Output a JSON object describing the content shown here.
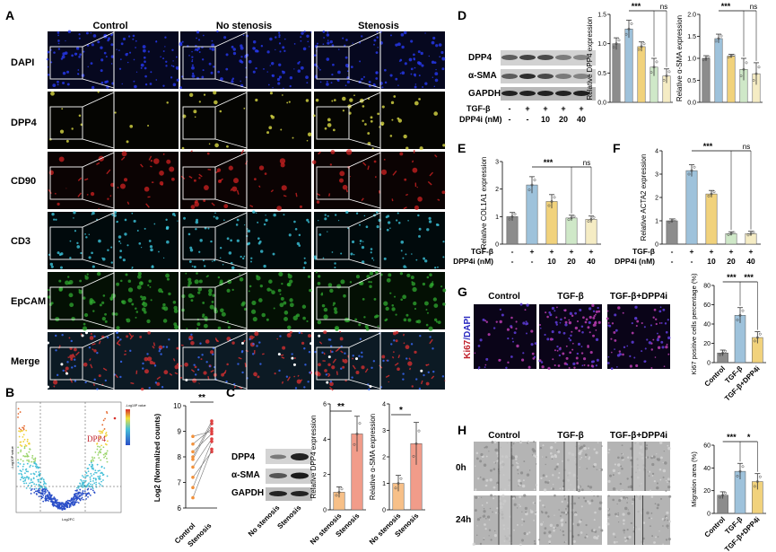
{
  "panel_letters": [
    "A",
    "B",
    "C",
    "D",
    "E",
    "F",
    "G",
    "H"
  ],
  "colors": {
    "bar_gray": "#8c8c8c",
    "bar_blue": "#9ec2db",
    "bar_yellow": "#f1d27c",
    "bar_green": "#cfe8c8",
    "bar_cream": "#f5ecc4",
    "bar_orange": "#f7c088",
    "bar_salmon": "#f19c8a"
  },
  "panel_A": {
    "columns": [
      "Control",
      "No stenosis",
      "Stenosis"
    ],
    "rows": [
      "DAPI",
      "DPP4",
      "CD90",
      "CD3",
      "EpCAM",
      "Merge"
    ]
  },
  "panel_B": {
    "volcano": {
      "legend_title": "-Log10P value",
      "x_axis": "Log2FC",
      "y_axis": "-Log10P value",
      "highlight": "DPP4"
    },
    "paired": {
      "y_label": "Log2 (Normalized counts)",
      "groups": [
        "Control",
        "Stenosis"
      ],
      "significance": "**",
      "y_ticks": [
        "6",
        "7",
        "8",
        "9",
        "10"
      ]
    }
  },
  "panel_C": {
    "blot_labels": [
      "DPP4",
      "α-SMA",
      "GAPDH"
    ],
    "lanes": [
      "No stenosis",
      "Stenosis"
    ],
    "sig_dpp4": "**",
    "sig_sma": "*"
  },
  "panel_D": {
    "blot_labels": [
      "DPP4",
      "α-SMA",
      "GAPDH"
    ],
    "treat_labels": [
      "TGF-β",
      "DPP4i (nM)"
    ],
    "tgf_marks": [
      "-",
      "+",
      "+",
      "+",
      "+"
    ],
    "dpp4i_marks": [
      "-",
      "-",
      "10",
      "20",
      "40"
    ],
    "sig_main": "***",
    "sig_ns": "ns"
  },
  "panel_E": {
    "treat_labels": [
      "TGF-β",
      "DPP4i (nM)"
    ],
    "tgf_marks": [
      "-",
      "+",
      "+",
      "+",
      "+"
    ],
    "dpp4i_marks": [
      "-",
      "-",
      "10",
      "20",
      "40"
    ],
    "sig_main": "***",
    "sig_ns": "ns"
  },
  "panel_F": {
    "treat_labels": [
      "TGF-β",
      "DPP4i (nM)"
    ],
    "tgf_marks": [
      "-",
      "+",
      "+",
      "+",
      "+"
    ],
    "dpp4i_marks": [
      "-",
      "-",
      "10",
      "20",
      "40"
    ],
    "sig_main": "***",
    "sig_ns": "ns"
  },
  "panel_G": {
    "columns": [
      "Control",
      "TGF-β",
      "TGF-β+DPP4i"
    ],
    "stain_ki67": "Ki67",
    "stain_dapi": "/DAPI",
    "sig1": "***",
    "sig2": "***"
  },
  "panel_H": {
    "columns": [
      "Control",
      "TGF-β",
      "TGF-β+DPP4i"
    ],
    "rows": [
      "0h",
      "24h"
    ],
    "sig1": "***",
    "sig2": "*"
  },
  "chart_data": [
    {
      "id": "C-left",
      "type": "bar",
      "categories": [
        "No stenosis",
        "Stenosis"
      ],
      "values": [
        1.0,
        4.3
      ],
      "errors": [
        0.3,
        1.0
      ],
      "ylabel": "Relative DPP4 expression",
      "ylim": [
        0,
        6
      ],
      "y_ticks": [
        0,
        2,
        4,
        6
      ]
    },
    {
      "id": "C-right",
      "type": "bar",
      "categories": [
        "No stenosis",
        "Stenosis"
      ],
      "values": [
        1.0,
        2.5
      ],
      "errors": [
        0.3,
        0.8
      ],
      "ylabel": "Relative α-SMA expression",
      "ylim": [
        0,
        4
      ],
      "y_ticks": [
        0,
        1,
        2,
        3,
        4
      ]
    },
    {
      "id": "D-left",
      "type": "bar",
      "categories": [
        "-/-",
        "+/-",
        "+/10",
        "+/20",
        "+/40"
      ],
      "values": [
        1.0,
        1.25,
        0.95,
        0.6,
        0.45
      ],
      "errors": [
        0.1,
        0.15,
        0.08,
        0.15,
        0.12
      ],
      "ylabel": "Relative DPP4 expression",
      "ylim": [
        0,
        1.5
      ],
      "y_ticks": [
        0,
        0.5,
        1.0,
        1.5
      ]
    },
    {
      "id": "D-right",
      "type": "bar",
      "categories": [
        "-/-",
        "+/-",
        "+/10",
        "+/20",
        "+/40"
      ],
      "values": [
        1.0,
        1.45,
        1.05,
        0.75,
        0.65
      ],
      "errors": [
        0.06,
        0.1,
        0.04,
        0.25,
        0.25
      ],
      "ylabel": "Relative α-SMA expression",
      "ylim": [
        0,
        2.0
      ],
      "y_ticks": [
        0,
        0.5,
        1.0,
        1.5,
        2.0
      ]
    },
    {
      "id": "E",
      "type": "bar",
      "categories": [
        "-/-",
        "+/-",
        "+/10",
        "+/20",
        "+/40"
      ],
      "values": [
        1.0,
        2.15,
        1.55,
        0.95,
        0.9
      ],
      "errors": [
        0.15,
        0.3,
        0.25,
        0.1,
        0.12
      ],
      "ylabel": "Relative COL1A1 expression",
      "ylim": [
        0,
        3
      ],
      "y_ticks": [
        0,
        1,
        2,
        3
      ]
    },
    {
      "id": "F",
      "type": "bar",
      "categories": [
        "-/-",
        "+/-",
        "+/10",
        "+/20",
        "+/40"
      ],
      "values": [
        1.0,
        3.15,
        2.15,
        0.45,
        0.45
      ],
      "errors": [
        0.08,
        0.25,
        0.15,
        0.08,
        0.1
      ],
      "ylabel": "Relative ACTA2 expression",
      "ylim": [
        0,
        4
      ],
      "y_ticks": [
        0,
        1,
        2,
        3,
        4
      ]
    },
    {
      "id": "G",
      "type": "bar",
      "categories": [
        "Control",
        "TGF-β",
        "TGF-β+DPP4i"
      ],
      "values": [
        10,
        49,
        26
      ],
      "errors": [
        3,
        8,
        6
      ],
      "ylabel": "Ki67 positive cells percentage (%)",
      "ylim": [
        0,
        80
      ],
      "y_ticks": [
        0,
        20,
        40,
        60,
        80
      ]
    },
    {
      "id": "H",
      "type": "bar",
      "categories": [
        "Control",
        "TGF-β",
        "TGF-β+DPP4i"
      ],
      "values": [
        16,
        37,
        28
      ],
      "errors": [
        3,
        7,
        7
      ],
      "ylabel": "Migration area (%)",
      "ylim": [
        0,
        60
      ],
      "y_ticks": [
        0,
        20,
        40,
        60
      ]
    }
  ]
}
